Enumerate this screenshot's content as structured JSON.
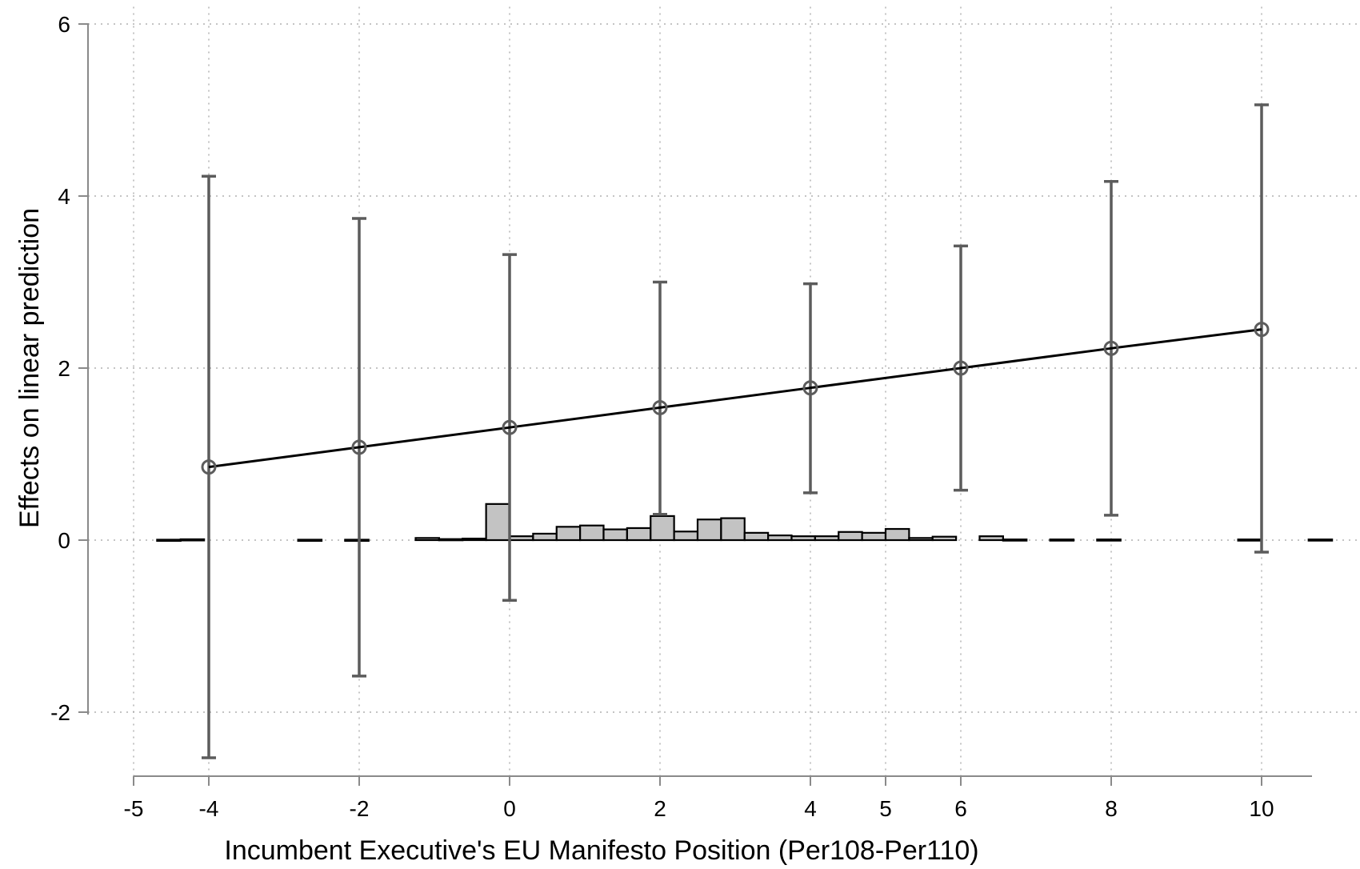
{
  "chart_data": {
    "type": "line",
    "xlabel": "Incumbent Executive's EU Manifesto Position (Per108-Per110)",
    "ylabel": "Effects on linear prediction",
    "xlim": [
      -5,
      11.3
    ],
    "ylim": [
      -2.75,
      6.2
    ],
    "x_ticks": [
      -5,
      -4,
      -2,
      0,
      2,
      4,
      5,
      6,
      8,
      10
    ],
    "y_ticks": [
      -2,
      0,
      2,
      4,
      6
    ],
    "grid": true,
    "series": [
      {
        "points": [
          {
            "x": -4,
            "y": 0.85,
            "lower": -2.53,
            "upper": 4.23
          },
          {
            "x": -2,
            "y": 1.08,
            "lower": -1.58,
            "upper": 3.74
          },
          {
            "x": 0,
            "y": 1.31,
            "lower": -0.7,
            "upper": 3.32
          },
          {
            "x": 2,
            "y": 1.54,
            "lower": 0.3,
            "upper": 3.0
          },
          {
            "x": 4,
            "y": 1.77,
            "lower": 0.55,
            "upper": 2.98
          },
          {
            "x": 6,
            "y": 2.0,
            "lower": 0.58,
            "upper": 3.42
          },
          {
            "x": 8,
            "y": 2.23,
            "lower": 0.29,
            "upper": 4.17
          },
          {
            "x": 10,
            "y": 2.45,
            "lower": -0.14,
            "upper": 5.06
          }
        ]
      }
    ],
    "histogram": {
      "bin_width": 0.3125,
      "bins": [
        {
          "start": -4.6875,
          "height": 0.005
        },
        {
          "start": -4.375,
          "height": 0.01
        },
        {
          "start": -2.8125,
          "height": 0.005
        },
        {
          "start": -2.1875,
          "height": 0.005
        },
        {
          "start": -1.25,
          "height": 0.025
        },
        {
          "start": -0.9375,
          "height": 0.012
        },
        {
          "start": -0.625,
          "height": 0.018
        },
        {
          "start": -0.3125,
          "height": 0.42
        },
        {
          "start": 0,
          "height": 0.045
        },
        {
          "start": 0.3125,
          "height": 0.075
        },
        {
          "start": 0.625,
          "height": 0.155
        },
        {
          "start": 0.9375,
          "height": 0.17
        },
        {
          "start": 1.25,
          "height": 0.125
        },
        {
          "start": 1.5625,
          "height": 0.14
        },
        {
          "start": 1.875,
          "height": 0.28
        },
        {
          "start": 2.1875,
          "height": 0.1
        },
        {
          "start": 2.5,
          "height": 0.24
        },
        {
          "start": 2.8125,
          "height": 0.255
        },
        {
          "start": 3.125,
          "height": 0.085
        },
        {
          "start": 3.4375,
          "height": 0.055
        },
        {
          "start": 3.75,
          "height": 0.045
        },
        {
          "start": 4.0625,
          "height": 0.045
        },
        {
          "start": 4.375,
          "height": 0.095
        },
        {
          "start": 4.6875,
          "height": 0.085
        },
        {
          "start": 5.0,
          "height": 0.13
        },
        {
          "start": 5.3125,
          "height": 0.025
        },
        {
          "start": 5.625,
          "height": 0.04
        },
        {
          "start": 6.25,
          "height": 0.045
        },
        {
          "start": 6.5625,
          "height": 0.008
        },
        {
          "start": 7.1875,
          "height": 0.008
        },
        {
          "start": 7.8125,
          "height": 0.008
        },
        {
          "start": 9.6875,
          "height": 0.008
        },
        {
          "start": 10.625,
          "height": 0.008
        }
      ]
    }
  }
}
